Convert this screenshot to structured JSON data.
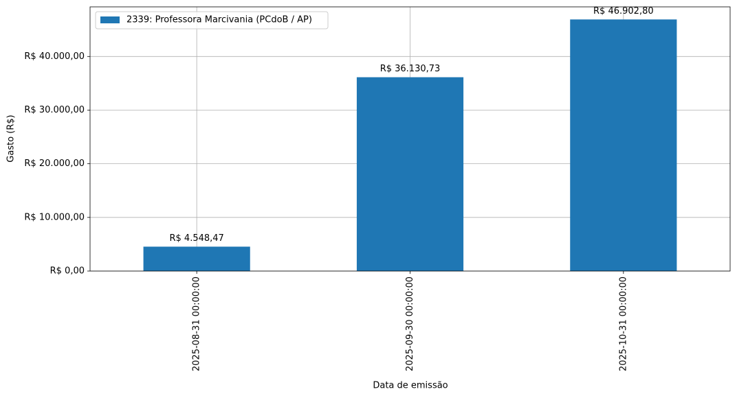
{
  "chart_data": {
    "type": "bar",
    "xlabel": "Data de emissão",
    "ylabel": "Gasto (R$)",
    "categories": [
      "2025-08-31 00:00:00",
      "2025-09-30 00:00:00",
      "2025-10-31 00:00:00"
    ],
    "series": [
      {
        "name": "2339: Professora Marcivania (PCdoB / AP)",
        "color": "#1f77b4",
        "values": [
          4548.47,
          36130.73,
          46902.8
        ],
        "value_labels": [
          "R$ 4.548,47",
          "R$ 36.130,73",
          "R$ 46.902,80"
        ]
      }
    ],
    "ylim": [
      0,
      49248
    ],
    "yticks": [
      {
        "value": 0,
        "label": "R$ 0,00"
      },
      {
        "value": 10000,
        "label": "R$ 10.000,00"
      },
      {
        "value": 20000,
        "label": "R$ 20.000,00"
      },
      {
        "value": 30000,
        "label": "R$ 30.000,00"
      },
      {
        "value": 40000,
        "label": "R$ 40.000,00"
      }
    ],
    "grid": true,
    "legend": "upper left"
  }
}
